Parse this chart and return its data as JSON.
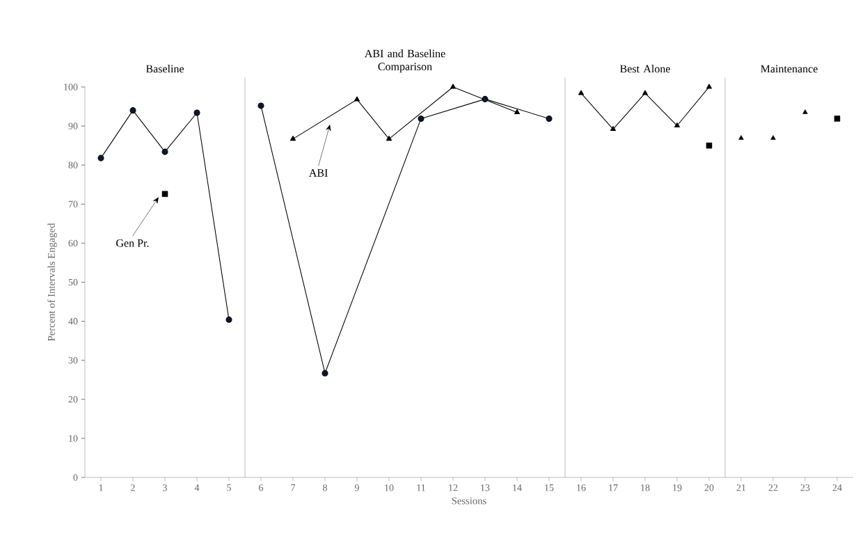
{
  "chart_data": {
    "type": "line",
    "xlabel": "Sessions",
    "ylabel": "Percent of Intervals Engaged",
    "xlim": [
      0.5,
      24.5
    ],
    "xticks": [
      1,
      2,
      3,
      4,
      5,
      6,
      7,
      8,
      9,
      10,
      11,
      12,
      13,
      14,
      15,
      16,
      17,
      18,
      19,
      20,
      21,
      22,
      23,
      24
    ],
    "ylim": [
      0,
      100
    ],
    "yticks": [
      0,
      10,
      20,
      30,
      40,
      50,
      60,
      70,
      80,
      90,
      100
    ],
    "line_style": "solid",
    "series": [
      {
        "marker": "circle",
        "color": "#0a1633",
        "x": [
          1,
          2,
          3,
          4,
          5
        ],
        "values": [
          81.8,
          94.0,
          83.4,
          93.4,
          40.4
        ]
      },
      {
        "marker": "circle",
        "color": "#0a1633",
        "x": [
          6,
          8,
          11,
          13,
          15
        ],
        "values": [
          95.2,
          26.7,
          91.9,
          96.9,
          91.9
        ]
      },
      {
        "marker": "triangle",
        "color": "#000000",
        "x": [
          7,
          9,
          10,
          12,
          14
        ],
        "values": [
          86.7,
          96.8,
          86.7,
          100,
          93.5
        ]
      },
      {
        "marker": "triangle",
        "color": "#000000",
        "x": [
          16,
          17,
          18,
          19,
          20
        ],
        "values": [
          98.4,
          89.2,
          98.4,
          90.1,
          100
        ]
      },
      {
        "type": "scatter",
        "marker": "triangle",
        "color": "#000000",
        "x": [
          21,
          22,
          23
        ],
        "values": [
          86.9,
          86.9,
          93.5
        ]
      },
      {
        "type": "scatter",
        "marker": "square",
        "color": "#000000",
        "x": [
          3,
          20,
          24
        ],
        "values": [
          72.6,
          85.0,
          91.9
        ]
      }
    ],
    "ref_lines": [
      {
        "axis": "x",
        "value": 5.5,
        "color": "#808080"
      },
      {
        "axis": "x",
        "value": 15.5,
        "color": "#808080"
      },
      {
        "axis": "x",
        "value": 20.5,
        "color": "#808080"
      }
    ],
    "annotations": [
      "Baseline",
      "ABI and Baseline Comparison",
      "Best Alone",
      "Maintenance",
      "Gen Pr.",
      "ABI"
    ]
  }
}
